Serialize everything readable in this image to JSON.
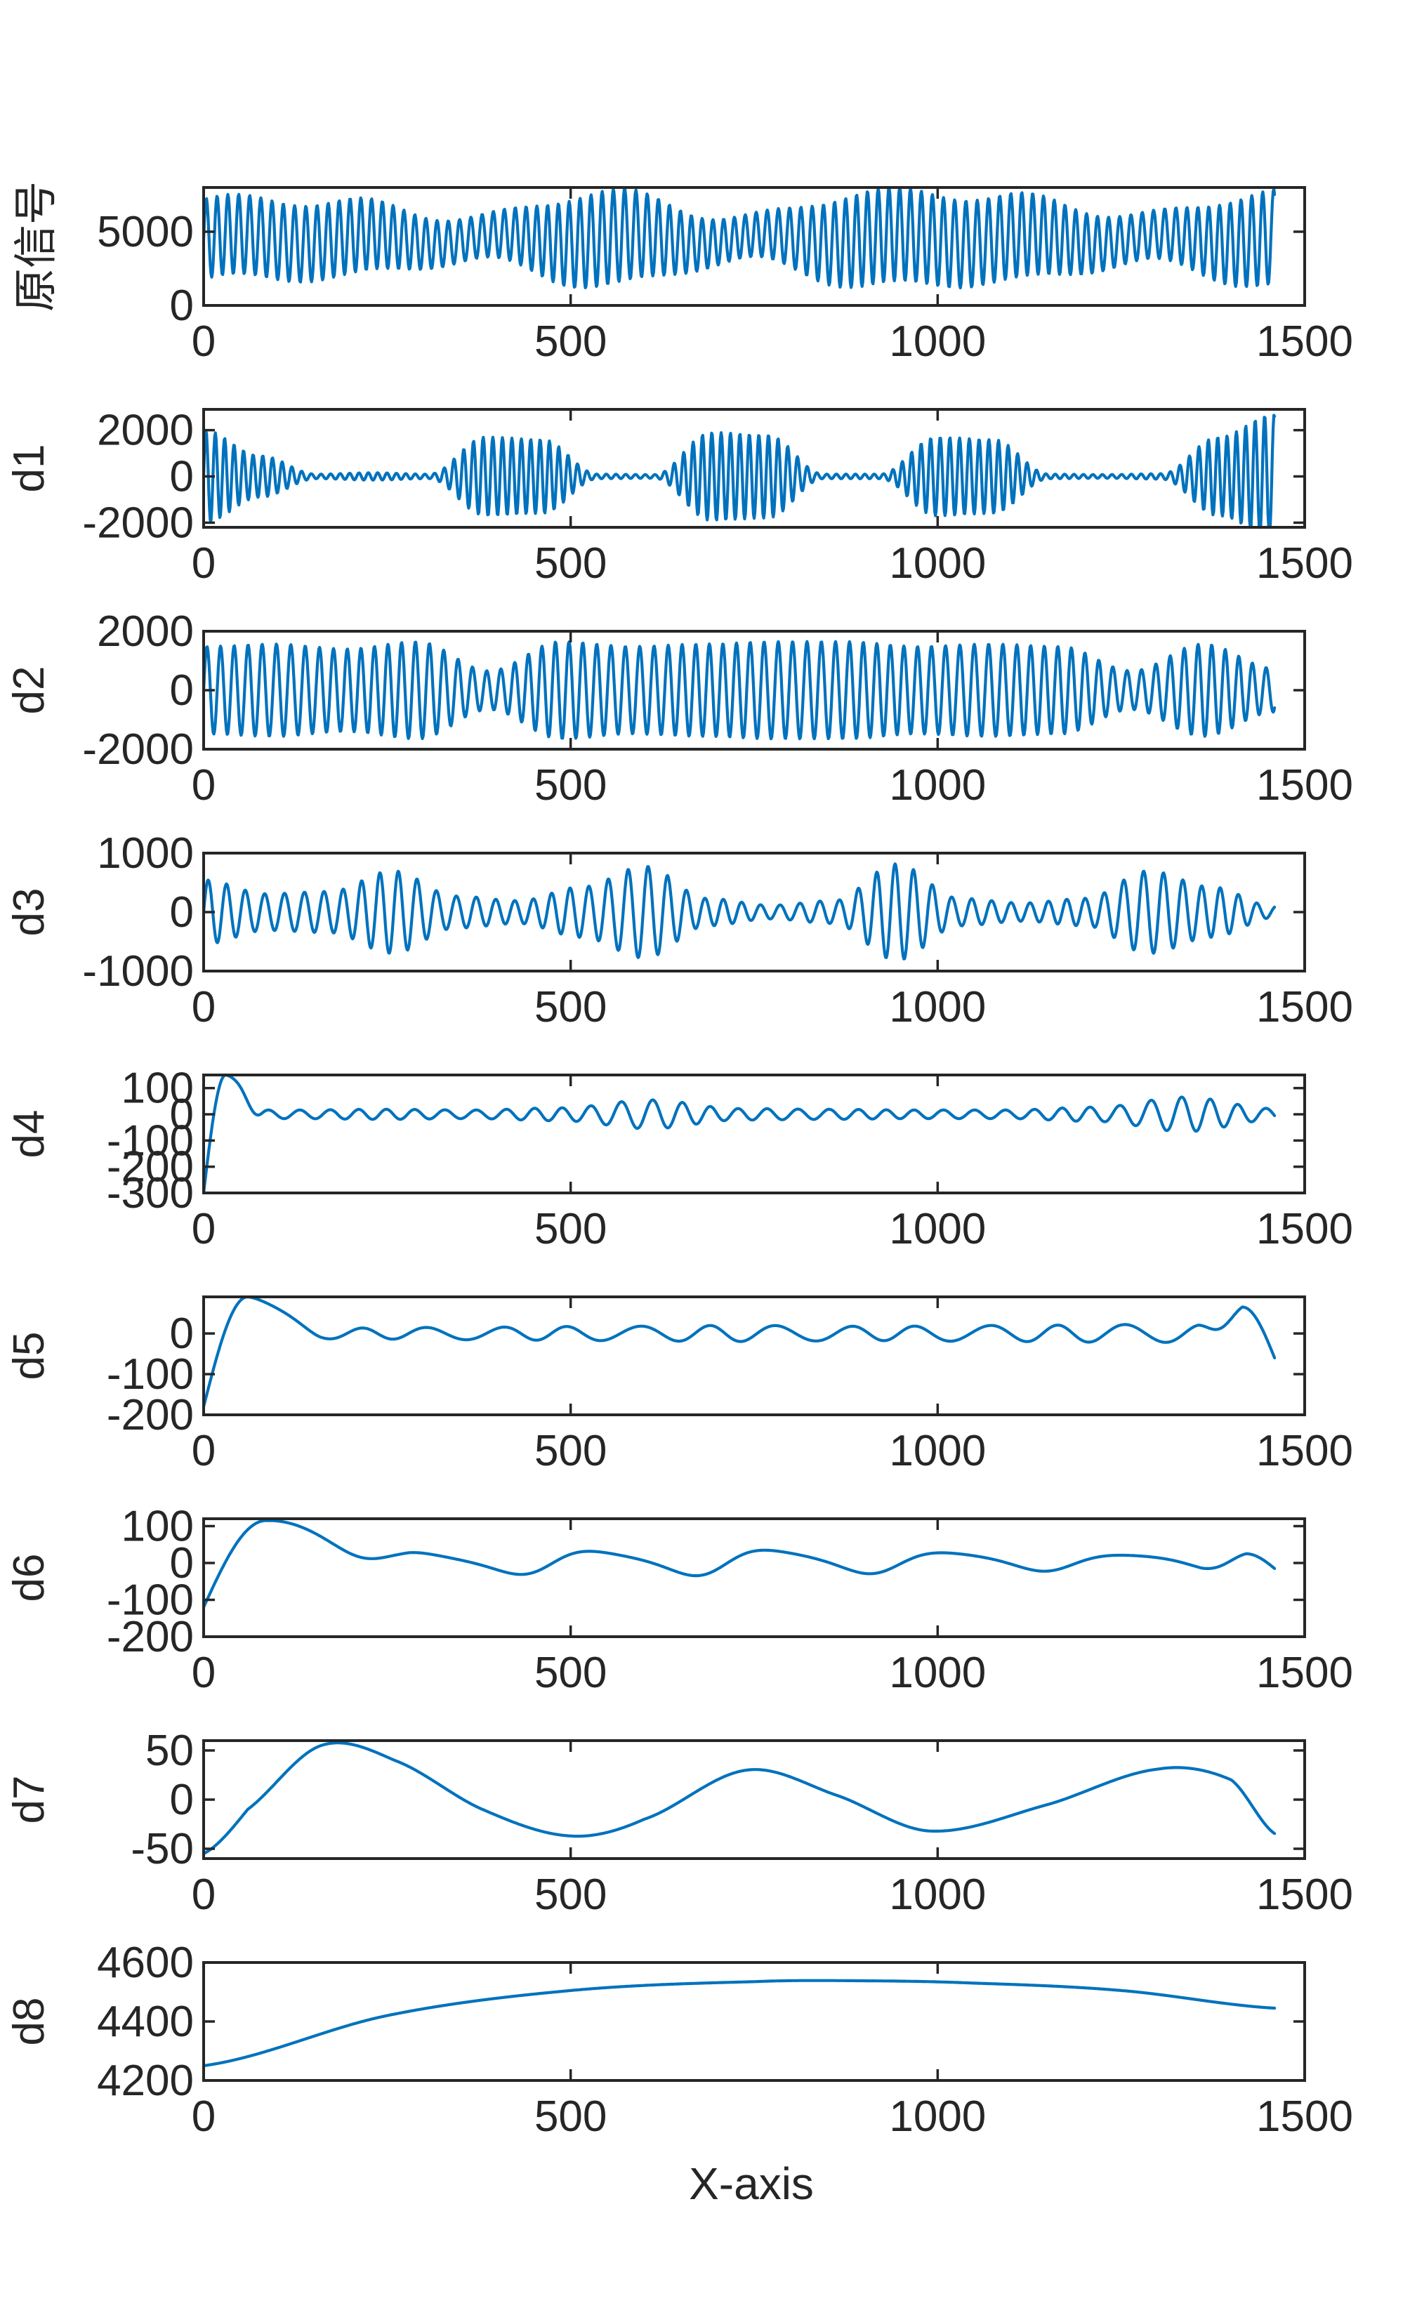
{
  "figure": {
    "xlabel": "X-axis",
    "line_color": "#0072BD"
  },
  "chart_data": [
    {
      "type": "line",
      "name": "原信号",
      "ylabel": "原信号",
      "xlim": [
        0,
        1500
      ],
      "ylim": [
        0,
        8000
      ],
      "xticks": [
        0,
        500,
        1000,
        1500
      ],
      "yticks": [
        0,
        5000
      ],
      "n_points": 1460,
      "signal_description": "oscillating signal around ~4500 with beating amplitude envelope",
      "components": [
        {
          "kind": "const",
          "value": 4500
        },
        {
          "kind": "am",
          "amp": 3200,
          "period": 15,
          "env": [
            0.85,
            0.8,
            0.45,
            1.0,
            0.45,
            1.0,
            0.9,
            0.5,
            1.0
          ]
        },
        {
          "kind": "sin",
          "amp": 350,
          "period": 180
        }
      ],
      "grid": false
    },
    {
      "type": "line",
      "name": "d1",
      "ylabel": "d1",
      "xlim": [
        0,
        1500
      ],
      "ylim": [
        -2200,
        2900
      ],
      "xticks": [
        0,
        500,
        1000,
        1500
      ],
      "yticks": [
        -2000,
        0,
        2000
      ],
      "n_points": 1460,
      "components": [
        {
          "kind": "am",
          "amp": 2000,
          "period": 13,
          "env": [
            1.0,
            0.45,
            0.05,
            0.08,
            0.05,
            0.85,
            0.8,
            0.05,
            0.04,
            0.95,
            0.9,
            0.05,
            0.05,
            0.85,
            0.8,
            0.05,
            0.04,
            0.06,
            0.85,
            1.35
          ]
        }
      ],
      "grid": false
    },
    {
      "type": "line",
      "name": "d2",
      "ylabel": "d2",
      "xlim": [
        0,
        1500
      ],
      "ylim": [
        -2000,
        2000
      ],
      "xticks": [
        0,
        500,
        1000,
        1500
      ],
      "yticks": [
        -2000,
        0,
        2000
      ],
      "n_points": 1460,
      "components": [
        {
          "kind": "am",
          "amp": 1650,
          "period": 19,
          "env": [
            0.9,
            0.95,
            0.85,
            1.0,
            0.4,
            1.0,
            0.9,
            0.95,
            1.0,
            1.0,
            0.9,
            0.95,
            0.9,
            0.4,
            0.95,
            0.45
          ]
        }
      ],
      "grid": false
    },
    {
      "type": "line",
      "name": "d3",
      "ylabel": "d3",
      "xlim": [
        0,
        1500
      ],
      "ylim": [
        -1000,
        1000
      ],
      "xticks": [
        0,
        500,
        1000,
        1500
      ],
      "yticks": [
        -1000,
        0,
        1000
      ],
      "n_points": 1460,
      "components": [
        {
          "kind": "am",
          "amp": 780,
          "period": 26,
          "env": [
            0.7,
            0.4,
            0.45,
            0.9,
            0.35,
            0.25,
            0.55,
            1.0,
            0.3,
            0.15,
            0.25,
            1.05,
            0.3,
            0.2,
            0.3,
            0.9,
            0.55,
            0.12
          ]
        }
      ],
      "grid": false
    },
    {
      "type": "line",
      "name": "d4",
      "ylabel": "d4",
      "xlim": [
        0,
        1500
      ],
      "ylim": [
        -300,
        150
      ],
      "xticks": [
        0,
        500,
        1000,
        1500
      ],
      "yticks": [
        -300,
        -200,
        -100,
        0,
        100
      ],
      "n_points": 1460,
      "components": [
        {
          "kind": "const",
          "value": 0
        },
        {
          "kind": "am",
          "amp": 55,
          "period": 40,
          "env": [
            0.3,
            0.3,
            0.35,
            0.3,
            0.45,
            1.0,
            0.4,
            0.35,
            0.3,
            0.3,
            0.5,
            1.2,
            0.4
          ]
        }
      ],
      "edge_start": {
        "from": -300,
        "peak": 150,
        "peak_x": 30,
        "settle_x": 80
      },
      "grid": false
    },
    {
      "type": "line",
      "name": "d5",
      "ylabel": "d5",
      "xlim": [
        0,
        1500
      ],
      "ylim": [
        -200,
        90
      ],
      "xticks": [
        0,
        500,
        1000,
        1500
      ],
      "yticks": [
        -200,
        -100,
        0
      ],
      "n_points": 1460,
      "components": [
        {
          "kind": "am",
          "amp": 22,
          "period": 95,
          "env": [
            0.8,
            0.6,
            0.7,
            0.8,
            0.9,
            0.8,
            0.9,
            1.0,
            0.9
          ]
        }
      ],
      "edge_start": {
        "from": -180,
        "peak": 90,
        "peak_x": 60,
        "settle_x": 160
      },
      "edge_end": {
        "rise_to": 65,
        "rise_x": 1415,
        "end_value": -60
      },
      "grid": false
    },
    {
      "type": "line",
      "name": "d6",
      "ylabel": "d6",
      "xlim": [
        0,
        1500
      ],
      "ylim": [
        -200,
        120
      ],
      "xticks": [
        0,
        500,
        1000,
        1500
      ],
      "yticks": [
        -200,
        -100,
        0,
        100
      ],
      "n_points": 1460,
      "components": [
        {
          "kind": "am",
          "amp": 35,
          "period": 240,
          "env": [
            0.7,
            0.8,
            0.9,
            1.0,
            0.8,
            0.6,
            0.6
          ]
        }
      ],
      "edge_start": {
        "from": -120,
        "peak": 115,
        "peak_x": 85,
        "settle_x": 280
      },
      "edge_end": {
        "rise_to": 25,
        "rise_x": 1420,
        "end_value": -15
      },
      "grid": false
    },
    {
      "type": "line",
      "name": "d7",
      "ylabel": "d7",
      "xlim": [
        0,
        1500
      ],
      "ylim": [
        -60,
        60
      ],
      "xticks": [
        0,
        500,
        1000,
        1500
      ],
      "yticks": [
        -50,
        0,
        50
      ],
      "n_points": 1460,
      "points": [
        [
          0,
          -55
        ],
        [
          60,
          -10
        ],
        [
          160,
          55
        ],
        [
          260,
          40
        ],
        [
          380,
          -10
        ],
        [
          500,
          -37
        ],
        [
          600,
          -20
        ],
        [
          740,
          30
        ],
        [
          860,
          5
        ],
        [
          990,
          -32
        ],
        [
          1150,
          -5
        ],
        [
          1300,
          31
        ],
        [
          1400,
          20
        ],
        [
          1460,
          -35
        ]
      ],
      "grid": false
    },
    {
      "type": "line",
      "name": "d8",
      "ylabel": "d8",
      "xlim": [
        0,
        1500
      ],
      "ylim": [
        4200,
        4600
      ],
      "xticks": [
        0,
        500,
        1000,
        1500
      ],
      "yticks": [
        4200,
        4400,
        4600
      ],
      "n_points": 1460,
      "points": [
        [
          0,
          4250
        ],
        [
          250,
          4420
        ],
        [
          500,
          4505
        ],
        [
          750,
          4535
        ],
        [
          900,
          4538
        ],
        [
          1050,
          4530
        ],
        [
          1250,
          4505
        ],
        [
          1460,
          4445
        ]
      ],
      "grid": false
    }
  ]
}
